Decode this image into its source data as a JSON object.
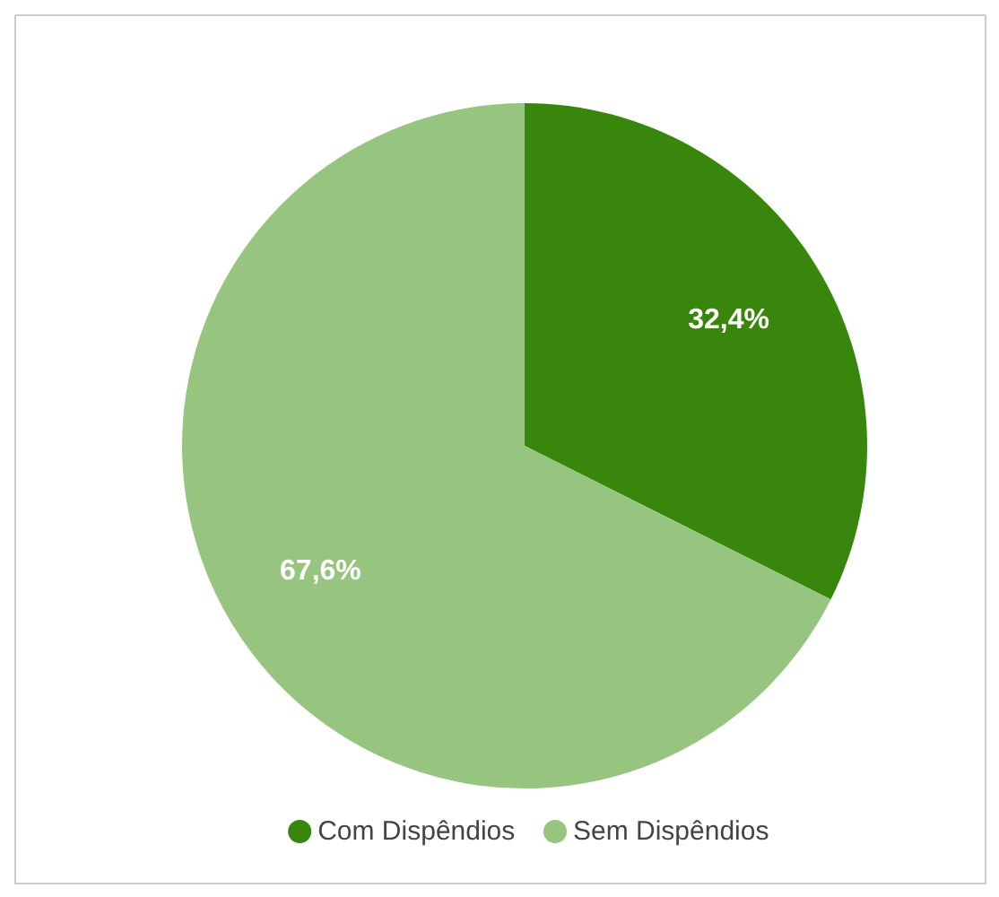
{
  "chart_data": {
    "type": "pie",
    "categories": [
      "Com Dispêndios",
      "Sem Dispêndios"
    ],
    "values": [
      32.4,
      67.6
    ],
    "colors": [
      "#38860b",
      "#97c47e"
    ],
    "value_labels": [
      "32,4%",
      "67,6%"
    ],
    "legend": "bottom"
  }
}
